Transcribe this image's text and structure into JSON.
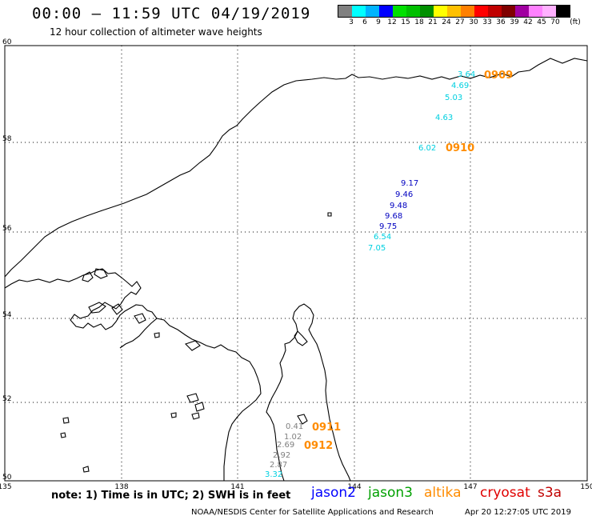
{
  "header": {
    "title": "00:00 – 11:59 UTC 04/19/2019",
    "subtitle": "12 hour collection of altimeter wave heights"
  },
  "colorbar": {
    "colors": [
      "#808080",
      "#00ffff",
      "#00b4ff",
      "#0000ff",
      "#00e000",
      "#00c000",
      "#009000",
      "#ffff00",
      "#ffc000",
      "#ff8000",
      "#ff0000",
      "#c00000",
      "#800000",
      "#a000a0",
      "#ff80ff",
      "#ffb0ff",
      "#000000"
    ],
    "labels": [
      "3",
      "6",
      "9",
      "12",
      "15",
      "18",
      "21",
      "24",
      "27",
      "30",
      "33",
      "36",
      "39",
      "42",
      "45",
      "70",
      "(ft)"
    ]
  },
  "axes": {
    "lon_ticks": [
      "135",
      "138",
      "141",
      "144",
      "147",
      "150"
    ],
    "lat_ticks": [
      "50",
      "52",
      "54",
      "56",
      "58",
      "60"
    ]
  },
  "passes": [
    {
      "label": "0909",
      "color": "#ff8c00"
    },
    {
      "label": "0910",
      "color": "#ff8c00"
    },
    {
      "label": "0911",
      "color": "#ff8c00"
    },
    {
      "label": "0912",
      "color": "#ff8c00"
    }
  ],
  "observations": [
    {
      "value": "3.64",
      "color": "#00d0e0"
    },
    {
      "value": "4.69",
      "color": "#00d0e0"
    },
    {
      "value": "5.03",
      "color": "#00d0e0"
    },
    {
      "value": "4.63",
      "color": "#00d0e0"
    },
    {
      "value": "6.02",
      "color": "#00d0e0"
    },
    {
      "value": "9.17",
      "color": "#0000c0"
    },
    {
      "value": "9.46",
      "color": "#0000c0"
    },
    {
      "value": "9.48",
      "color": "#0000c0"
    },
    {
      "value": "9.68",
      "color": "#0000c0"
    },
    {
      "value": "9.75",
      "color": "#0000c0"
    },
    {
      "value": "6.54",
      "color": "#00d0e0"
    },
    {
      "value": "7.05",
      "color": "#00d0e0"
    },
    {
      "value": "0.41",
      "color": "#808080"
    },
    {
      "value": "1.02",
      "color": "#808080"
    },
    {
      "value": "2.69",
      "color": "#808080"
    },
    {
      "value": "2.92",
      "color": "#808080"
    },
    {
      "value": "2.87",
      "color": "#808080"
    },
    {
      "value": "3.32",
      "color": "#00d0e0"
    }
  ],
  "footer": {
    "note": "note: 1) Time is in UTC; 2) SWH is in feet",
    "satellites": [
      {
        "name": "jason2",
        "color": "#0000ff"
      },
      {
        "name": "jason3",
        "color": "#00a000"
      },
      {
        "name": "altika",
        "color": "#ff8c00"
      },
      {
        "name": "cryosat",
        "color": "#e00000"
      },
      {
        "name": "s3a",
        "color": "#c00000"
      }
    ],
    "credit": "NOAA/NESDIS Center for Satellite Applications and Research",
    "timestamp": "Apr 20 12:27:05 UTC 2019"
  }
}
